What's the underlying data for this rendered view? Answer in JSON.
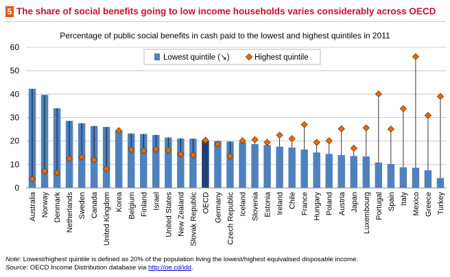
{
  "header": {
    "badge": "5",
    "title": "The share of social benefits going to low income households varies considerably across OECD"
  },
  "chart_data": {
    "type": "bar",
    "title": "Percentage of public social benefits in cash paid to the lowest and highest quintiles in 2011",
    "xlabel": "",
    "ylabel": "",
    "ylim": [
      0,
      60
    ],
    "yticks": [
      0,
      10,
      20,
      30,
      40,
      50,
      60
    ],
    "categories": [
      "Australia",
      "Norway",
      "Denmark",
      "Netherlands",
      "Sweden",
      "Canada",
      "United Kingdom",
      "Korea",
      "Belgium",
      "Finland",
      "Israel",
      "United States",
      "New Zealand",
      "Slovak Republic",
      "OECD",
      "Germany",
      "Czech Republic",
      "Iceland",
      "Slovenia",
      "Estonia",
      "Ireland",
      "Chile",
      "France",
      "Hungary",
      "Poland",
      "Austria",
      "Japan",
      "Luxembourg",
      "Portugal",
      "Spain",
      "Italy",
      "Mexico",
      "Greece",
      "Turkey"
    ],
    "series": [
      {
        "name": "Lowest quintile (↘)",
        "type": "bar",
        "values": [
          42.3,
          39.7,
          34.0,
          28.6,
          27.6,
          26.4,
          26.0,
          24.5,
          23.2,
          23.0,
          22.6,
          21.5,
          21.1,
          21.0,
          20.1,
          20.0,
          19.8,
          19.5,
          18.7,
          18.3,
          17.6,
          17.2,
          16.4,
          15.1,
          14.5,
          14.0,
          13.6,
          13.4,
          10.8,
          10.2,
          8.8,
          8.6,
          7.5,
          4.2
        ]
      },
      {
        "name": "Highest quintile",
        "type": "marker",
        "values": [
          3.8,
          7.1,
          6.5,
          12.5,
          13.1,
          12.0,
          8.0,
          24.4,
          16.3,
          15.9,
          16.4,
          16.1,
          14.4,
          14.0,
          20.3,
          18.7,
          13.5,
          20.1,
          20.6,
          19.4,
          22.5,
          21.0,
          27.0,
          19.4,
          20.1,
          25.2,
          16.9,
          25.6,
          40.1,
          25.1,
          33.8,
          56.0,
          30.9,
          39.0
        ]
      }
    ],
    "legend": {
      "placement": "top-center",
      "labels": [
        "Lowest quintile (↘)",
        "Highest quintile"
      ]
    },
    "colors": {
      "bar": "#4f81bd",
      "oecd_bar": "#1f3f73",
      "marker": "#e36c0a",
      "marker_edge": "#7f3400",
      "connector": "#000000",
      "grid": "#bfbfbf"
    }
  },
  "note": {
    "label": "Note",
    "text": ": Lowest/highest quintile is defined as 20% of the population living the lowest/highest equivalised disposable income.",
    "source_label": "Source",
    "source_text": ": OECD Income Distribution database via ",
    "link": "http://oe.cd/idd",
    "end": "."
  }
}
